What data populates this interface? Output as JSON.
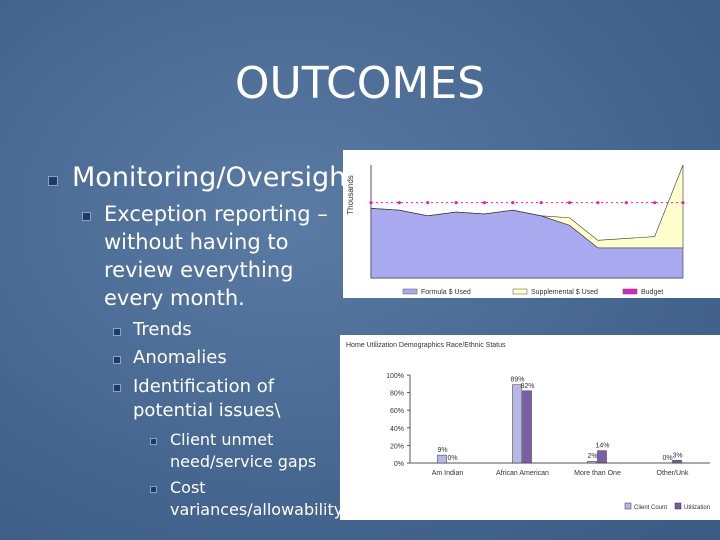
{
  "title": "OUTCOMES",
  "bullets": [
    {
      "text": "Monitoring/Oversight",
      "children": [
        {
          "text": "Exception reporting – without having to review everything every month.",
          "children": [
            {
              "text": "Trends"
            },
            {
              "text": "Anomalies"
            },
            {
              "text": "Identification of potential issues\\",
              "children": [
                {
                  "text": "Client unmet need/service gaps"
                },
                {
                  "text": "Cost variances/allowability"
                }
              ]
            }
          ]
        }
      ]
    }
  ],
  "charts": [
    {
      "type": "area",
      "y_label": "Thousands",
      "ylim": [
        0,
        6
      ],
      "series": [
        {
          "name": "Formula $ Used",
          "color": "#a9a9f0",
          "values": [
            3.7,
            3.6,
            3.3,
            3.5,
            3.4,
            3.6,
            3.3,
            2.8,
            1.6,
            1.6,
            1.6,
            1.6
          ]
        },
        {
          "name": "Supplemental $ Used",
          "color": "#ffffcc",
          "values": [
            0,
            0,
            0,
            0,
            0,
            0,
            0,
            0.4,
            0.4,
            0.5,
            0.6,
            4.4
          ]
        },
        {
          "name": "Budget",
          "color": "#e020c0",
          "values": [
            4,
            4,
            4,
            4,
            4,
            4,
            4,
            4,
            4,
            4,
            4,
            4
          ]
        }
      ]
    },
    {
      "type": "bar",
      "title": "Home Utilization Demographics Race/Ethnic Status",
      "categories": [
        "Am Indian",
        "African American",
        "More than One",
        "Other/Unk"
      ],
      "ylim": [
        0,
        100
      ],
      "yticks": [
        {
          "value": 0,
          "label": "0%"
        },
        {
          "value": 20,
          "label": "20%"
        },
        {
          "value": 40,
          "label": "40%"
        },
        {
          "value": 60,
          "label": "60%"
        },
        {
          "value": 80,
          "label": "80%"
        },
        {
          "value": 100,
          "label": "100%"
        }
      ],
      "series": [
        {
          "name": "Client Count",
          "color": "#b8b8e8",
          "values": [
            9,
            89,
            2,
            0
          ],
          "value_labels": [
            "9%",
            "89%",
            "2%",
            "0%"
          ]
        },
        {
          "name": "Utilization",
          "color": "#7b5ea8",
          "values": [
            0,
            82,
            14,
            3
          ],
          "value_labels": [
            "0%",
            "82%",
            "14%",
            "3%"
          ]
        }
      ]
    }
  ]
}
